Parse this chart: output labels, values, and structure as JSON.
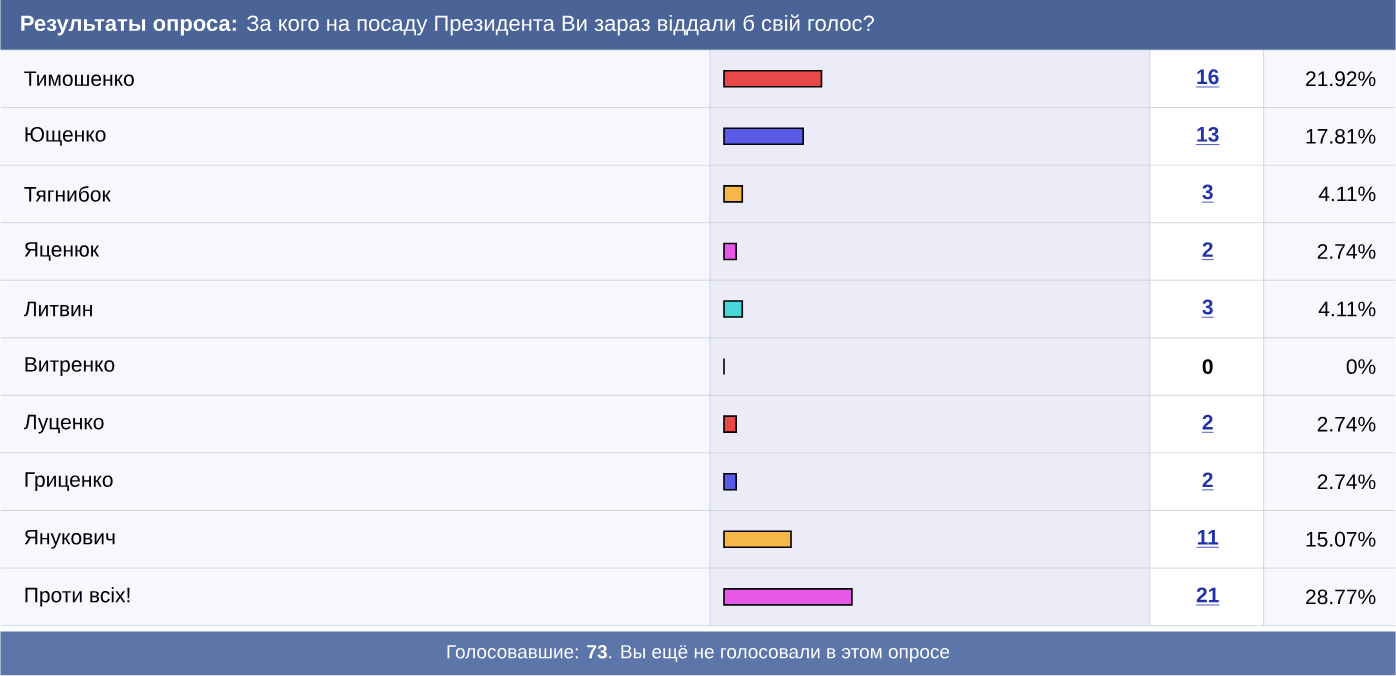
{
  "chart_data": {
    "type": "bar",
    "orientation": "horizontal",
    "title": "**Результаты опроса:** За кого на посаду Президента Ви зараз віддали б свій голос?",
    "categories": [
      "Тимошенко",
      "Ющенко",
      "Тягнибок",
      "Яценюк",
      "Литвин",
      "Витренко",
      "Луценко",
      "Гриценко",
      "Янукович",
      "Проти всіх!"
    ],
    "values": [
      16,
      13,
      3,
      2,
      3,
      0,
      2,
      2,
      11,
      21
    ],
    "colors": [
      "#e84848",
      "#5a5ae8",
      "#f5b848",
      "#e858e8",
      "#48d6d6",
      "#38b070",
      "#e84848",
      "#5a5ae8",
      "#f5b848",
      "#e858e8"
    ],
    "data_labels": true,
    "annotations": [
      "21.92%",
      "17.81%",
      "4.11%",
      "2.74%",
      "4.11%",
      "0%",
      "2.74%",
      "2.74%",
      "15.07%",
      "28.77%",
      "Голосовавшие: **73**. Вы ещё не голосовали в этом опросе"
    ]
  }
}
